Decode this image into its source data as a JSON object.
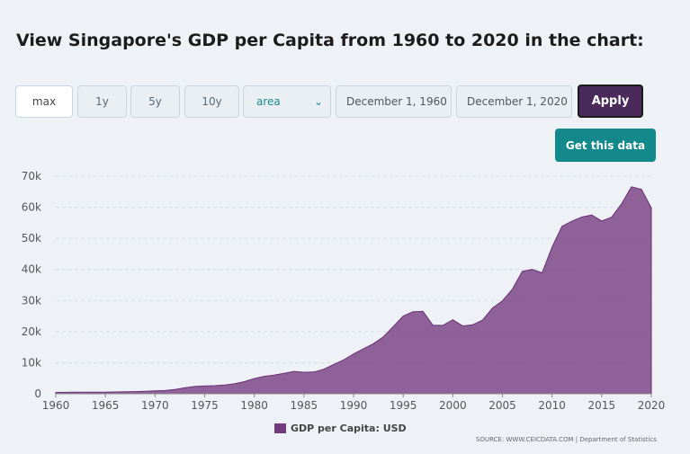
{
  "header": {
    "title": "View Singapore's GDP per Capita from 1960 to 2020 in the chart:"
  },
  "controls": {
    "ranges": [
      "max",
      "1y",
      "5y",
      "10y"
    ],
    "active_range": "max",
    "chart_type": "area",
    "start_date": "December 1, 1960",
    "end_date": "December 1, 2020",
    "apply_label": "Apply",
    "get_data_label": "Get this data"
  },
  "legend_label": "GDP per Capita: USD",
  "source_label": "SOURCE: WWW.CEICDATA.COM | Department of Statistics",
  "colors": {
    "area": "#733a7e",
    "apply": "#4a2a5a",
    "teal": "#13898b"
  },
  "chart_data": {
    "type": "area",
    "title": "",
    "xlabel": "",
    "ylabel": "",
    "xlim": [
      1960,
      2020
    ],
    "ylim": [
      0,
      70000
    ],
    "grid": true,
    "legend_position": "bottom",
    "x_ticks": [
      1960,
      1965,
      1970,
      1975,
      1980,
      1985,
      1990,
      1995,
      2000,
      2005,
      2010,
      2015,
      2020
    ],
    "y_ticks": [
      0,
      10000,
      20000,
      30000,
      40000,
      50000,
      60000,
      70000
    ],
    "y_tick_labels": [
      "0",
      "10k",
      "20k",
      "30k",
      "40k",
      "50k",
      "60k",
      "70k"
    ],
    "series": [
      {
        "name": "GDP per Capita: USD",
        "x": [
          1960,
          1961,
          1962,
          1963,
          1964,
          1965,
          1966,
          1967,
          1968,
          1969,
          1970,
          1971,
          1972,
          1973,
          1974,
          1975,
          1976,
          1977,
          1978,
          1979,
          1980,
          1981,
          1982,
          1983,
          1984,
          1985,
          1986,
          1987,
          1988,
          1989,
          1990,
          1991,
          1992,
          1993,
          1994,
          1995,
          1996,
          1997,
          1998,
          1999,
          2000,
          2001,
          2002,
          2003,
          2004,
          2005,
          2006,
          2007,
          2008,
          2009,
          2010,
          2011,
          2012,
          2013,
          2014,
          2015,
          2016,
          2017,
          2018,
          2019,
          2020
        ],
        "values": [
          430,
          450,
          480,
          510,
          490,
          520,
          570,
          630,
          700,
          810,
          930,
          1050,
          1350,
          1900,
          2350,
          2500,
          2600,
          2800,
          3200,
          3900,
          4900,
          5600,
          6000,
          6600,
          7200,
          6900,
          7000,
          7900,
          9400,
          10900,
          12800,
          14500,
          16100,
          18300,
          21600,
          25000,
          26400,
          26500,
          22000,
          22000,
          23800,
          21800,
          22200,
          23700,
          27600,
          29900,
          33600,
          39400,
          40000,
          38900,
          47200,
          53900,
          55500,
          56900,
          57500,
          55600,
          56800,
          61100,
          66600,
          65800,
          59800
        ]
      }
    ]
  }
}
